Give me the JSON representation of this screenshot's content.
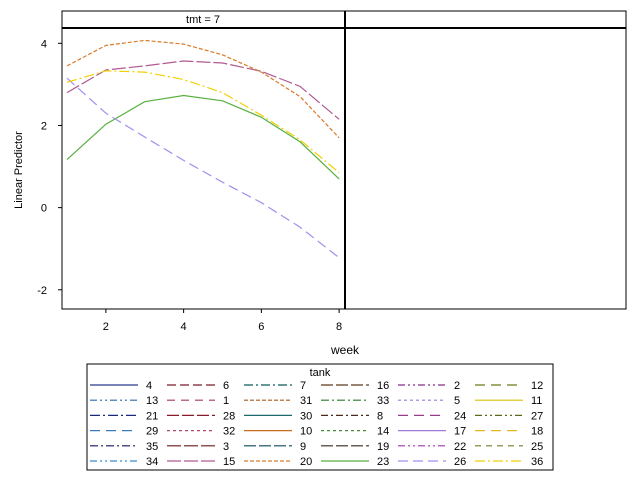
{
  "chart_data": {
    "type": "line",
    "panels": [
      {
        "label": "tmt = 7"
      },
      {
        "label": ""
      }
    ],
    "xlabel": "week",
    "ylabel": "Linear Predictor",
    "xlim": [
      1,
      8.1
    ],
    "ylim": [
      -2.2,
      4.3
    ],
    "xticks": [
      2,
      4,
      6,
      8
    ],
    "yticks": [
      -2,
      0,
      2,
      4
    ],
    "x": [
      1,
      2,
      3,
      4,
      5,
      6,
      7,
      8
    ],
    "legend_title": "tank",
    "legend": [
      {
        "name": "4",
        "color": "#2a3a8f",
        "dash": ""
      },
      {
        "name": "6",
        "color": "#7a1a2a",
        "dash": "9,4"
      },
      {
        "name": "7",
        "color": "#0a5a5a",
        "dash": "9,3,2,3"
      },
      {
        "name": "16",
        "color": "#5a3a1a",
        "dash": "12,3"
      },
      {
        "name": "2",
        "color": "#8a2a8a",
        "dash": "7,3,2,3,2,3"
      },
      {
        "name": "12",
        "color": "#6a7a1a",
        "dash": "10,6"
      },
      {
        "name": "13",
        "color": "#2a6aaa",
        "dash": "7,3,2,3,2,3"
      },
      {
        "name": "1",
        "color": "#aa3a5a",
        "dash": "8,6"
      },
      {
        "name": "31",
        "color": "#aa5a1a",
        "dash": "4,2"
      },
      {
        "name": "33",
        "color": "#2a7a2a",
        "dash": "8,3,2,3"
      },
      {
        "name": "5",
        "color": "#9a7ae0",
        "dash": "3,3"
      },
      {
        "name": "11",
        "color": "#d8c000",
        "dash": ""
      },
      {
        "name": "21",
        "color": "#1a2a7a",
        "dash": "10,3,2,3"
      },
      {
        "name": "28",
        "color": "#8a1a2a",
        "dash": "12,3"
      },
      {
        "name": "30",
        "color": "#1a6a6a",
        "dash": ""
      },
      {
        "name": "8",
        "color": "#4a2a1a",
        "dash": "7,3,2,3"
      },
      {
        "name": "24",
        "color": "#9a3a8a",
        "dash": "10,6"
      },
      {
        "name": "27",
        "color": "#5a6a1a",
        "dash": "7,3,2,3,2,3"
      },
      {
        "name": "29",
        "color": "#3a7ac0",
        "dash": "10,6"
      },
      {
        "name": "32",
        "color": "#b04a6a",
        "dash": "3,3"
      },
      {
        "name": "10",
        "color": "#c86a1a",
        "dash": ""
      },
      {
        "name": "14",
        "color": "#4a8a3a",
        "dash": "3,3"
      },
      {
        "name": "17",
        "color": "#a07ad8",
        "dash": ""
      },
      {
        "name": "18",
        "color": "#e0b820",
        "dash": "10,6"
      },
      {
        "name": "35",
        "color": "#1a1a5a",
        "dash": "8,3,2,3"
      },
      {
        "name": "3",
        "color": "#6a1a1a",
        "dash": "14,3"
      },
      {
        "name": "9",
        "color": "#0a4a5a",
        "dash": "12,3"
      },
      {
        "name": "19",
        "color": "#3a2a1a",
        "dash": "12,3"
      },
      {
        "name": "22",
        "color": "#9a3aaa",
        "dash": "7,3,2,3,2,3"
      },
      {
        "name": "25",
        "color": "#7a7a2a",
        "dash": "6,5"
      },
      {
        "name": "34",
        "color": "#3a8ad0",
        "dash": "7,3,2,3,2,3"
      },
      {
        "name": "15",
        "color": "#b05a90",
        "dash": "14,3"
      },
      {
        "name": "20",
        "color": "#d87a2a",
        "dash": "4,2"
      },
      {
        "name": "23",
        "color": "#58b040",
        "dash": ""
      },
      {
        "name": "26",
        "color": "#a090f0",
        "dash": "10,5"
      },
      {
        "name": "36",
        "color": "#f0d000",
        "dash": "10,3,2,3"
      }
    ],
    "series": [
      {
        "name": "15",
        "color": "#b05a90",
        "dash": "14,3",
        "values": [
          2.8,
          3.35,
          3.45,
          3.57,
          3.52,
          3.32,
          2.95,
          2.15
        ]
      },
      {
        "name": "20",
        "color": "#d87a2a",
        "dash": "4,2",
        "values": [
          3.45,
          3.95,
          4.07,
          3.98,
          3.72,
          3.3,
          2.7,
          1.7
        ]
      },
      {
        "name": "23",
        "color": "#58b040",
        "dash": "",
        "values": [
          1.17,
          2.03,
          2.58,
          2.73,
          2.6,
          2.2,
          1.6,
          0.7
        ]
      },
      {
        "name": "26",
        "color": "#a090f0",
        "dash": "10,5",
        "values": [
          3.15,
          2.3,
          1.72,
          1.15,
          0.62,
          0.12,
          -0.48,
          -1.22
        ]
      },
      {
        "name": "36",
        "color": "#f0d000",
        "dash": "10,3,2,3",
        "values": [
          3.05,
          3.33,
          3.3,
          3.12,
          2.8,
          2.25,
          1.65,
          0.85
        ]
      }
    ]
  }
}
